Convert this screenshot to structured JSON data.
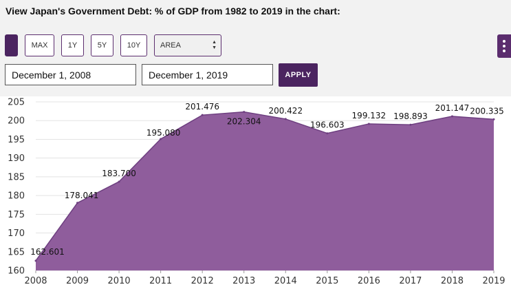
{
  "header": {
    "title": "View Japan's Government Debt: % of GDP from 1982 to 2019 in the chart:"
  },
  "toolbar": {
    "range_buttons": [
      "MAX",
      "1Y",
      "5Y",
      "10Y"
    ],
    "chart_type": {
      "selected": "AREA"
    },
    "start_date": "December 1, 2008",
    "end_date": "December 1, 2019",
    "apply_label": "APPLY"
  },
  "colors": {
    "accent": "#4b2460",
    "area_fill": "#8f5d9c",
    "area_stroke": "#6e3f80"
  },
  "chart_data": {
    "type": "area",
    "x": [
      2008,
      2009,
      2010,
      2011,
      2012,
      2013,
      2014,
      2015,
      2016,
      2017,
      2018,
      2019
    ],
    "values": [
      162.601,
      178.041,
      183.7,
      195.08,
      201.476,
      202.304,
      200.422,
      196.603,
      199.132,
      198.893,
      201.147,
      200.335
    ],
    "labels": [
      "162.601",
      "178.041",
      "183.700",
      "195.080",
      "201.476",
      "202.304",
      "200.422",
      "196.603",
      "199.132",
      "198.893",
      "201.147",
      "200.335"
    ],
    "xticks": [
      "2008",
      "2009",
      "2010",
      "2011",
      "2012",
      "2013",
      "2014",
      "2015",
      "2016",
      "2017",
      "2018",
      "2019"
    ],
    "yticks": [
      "160",
      "165",
      "170",
      "175",
      "180",
      "185",
      "190",
      "195",
      "200",
      "205"
    ],
    "ylim": [
      160,
      205
    ],
    "grid": true
  }
}
